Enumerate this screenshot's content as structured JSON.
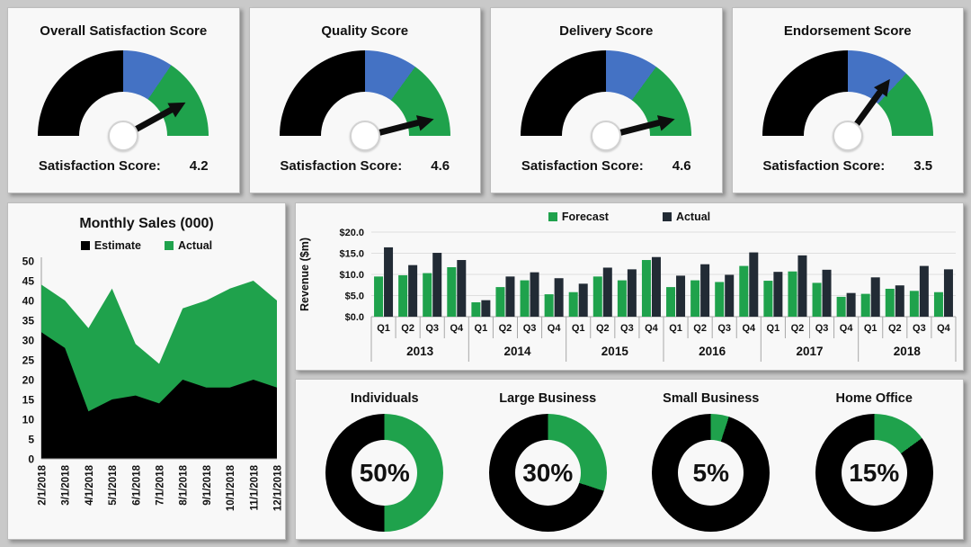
{
  "chart_data": [
    {
      "id": "satisfaction-gauges",
      "type": "gauge",
      "max": 5,
      "score_label": "Satisfaction Score:",
      "segment_colors": [
        "#000000",
        "#4472c4",
        "#1fa24c"
      ],
      "items": [
        {
          "title": "Overall Satisfaction Score",
          "score": "4.2",
          "segments_pct": [
            50,
            19,
            31
          ]
        },
        {
          "title": "Quality Score",
          "score": "4.6",
          "segments_pct": [
            50,
            20,
            30
          ]
        },
        {
          "title": "Delivery Score",
          "score": "4.6",
          "segments_pct": [
            50,
            20,
            30
          ]
        },
        {
          "title": "Endorsement Score",
          "score": "3.5",
          "segments_pct": [
            50,
            24,
            26
          ]
        }
      ]
    },
    {
      "id": "monthly-sales",
      "type": "area",
      "title": "Monthly Sales (000)",
      "categories": [
        "2/1/2018",
        "3/1/2018",
        "4/1/2018",
        "5/1/2018",
        "6/1/2018",
        "7/1/2018",
        "8/1/2018",
        "9/1/2018",
        "10/1/2018",
        "11/1/2018",
        "12/1/2018"
      ],
      "series": [
        {
          "name": "Estimate",
          "color": "#000000",
          "values": [
            32,
            28,
            12,
            15,
            16,
            14,
            20,
            18,
            18,
            20,
            18
          ]
        },
        {
          "name": "Actual",
          "color": "#1fa24c",
          "values": [
            44,
            40,
            33,
            43,
            29,
            24,
            38,
            40,
            43,
            45,
            40
          ]
        }
      ],
      "ylim": [
        0,
        50
      ],
      "ytick": 5,
      "legend_position": "top",
      "grid": false
    },
    {
      "id": "quarterly-revenue",
      "type": "bar",
      "ylabel": "Revenue ($m)",
      "years": [
        "2013",
        "2014",
        "2015",
        "2016",
        "2017",
        "2018"
      ],
      "quarters": [
        "Q1",
        "Q2",
        "Q3",
        "Q4"
      ],
      "series": [
        {
          "name": "Forecast",
          "color": "#1fa24c",
          "values": [
            9.5,
            9.8,
            10.3,
            11.7,
            3.4,
            7.0,
            8.6,
            5.3,
            5.8,
            9.5,
            8.6,
            13.4,
            7.0,
            8.6,
            8.2,
            12.0,
            8.5,
            10.7,
            8.0,
            4.7,
            5.4,
            6.6,
            6.1,
            5.8
          ]
        },
        {
          "name": "Actual",
          "color": "#222b35",
          "values": [
            16.4,
            12.2,
            15.1,
            13.4,
            3.9,
            9.5,
            10.5,
            9.1,
            7.8,
            11.6,
            11.2,
            14.1,
            9.7,
            12.4,
            9.9,
            15.2,
            10.6,
            14.5,
            11.1,
            5.6,
            9.3,
            7.4,
            12.0,
            11.2
          ]
        }
      ],
      "ylim": [
        0,
        20
      ],
      "ytick": 5,
      "ytick_prefix": "$",
      "ytick_decimals": 1,
      "legend_position": "top",
      "grid": true
    },
    {
      "id": "customer-segments",
      "type": "pie",
      "colors": {
        "filled": "#1fa24c",
        "remainder": "#000000"
      },
      "items": [
        {
          "label": "Individuals",
          "value_pct": 50,
          "display": "50%"
        },
        {
          "label": "Large Business",
          "value_pct": 30,
          "display": "30%"
        },
        {
          "label": "Small Business",
          "value_pct": 5,
          "display": "5%"
        },
        {
          "label": "Home Office",
          "value_pct": 15,
          "display": "15%"
        }
      ]
    }
  ]
}
